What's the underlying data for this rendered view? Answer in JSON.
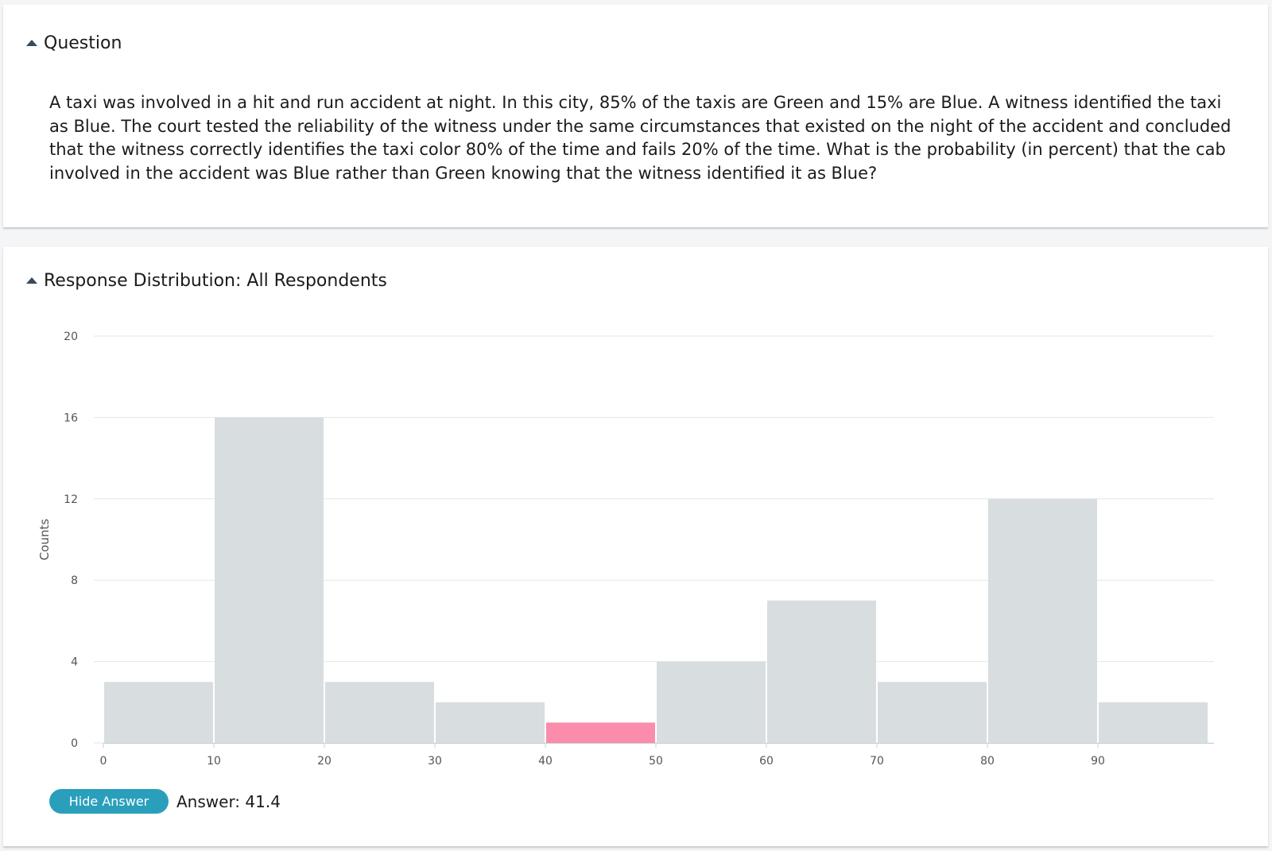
{
  "question_section": {
    "header": "Question",
    "text": "A taxi was involved in a hit and run accident at night. In this city, 85% of the taxis are Green and 15% are Blue. A witness identified the taxi as Blue. The court tested the reliability of the witness under the same circumstances that existed on the night of the accident and concluded that the witness correctly identifies the taxi color 80% of the time and fails 20% of the time. What is the probability (in percent) that the cab involved in the accident was Blue rather than Green knowing that the witness identified it as Blue?"
  },
  "distribution_section": {
    "header": "Response Distribution: All Respondents",
    "hide_answer_label": "Hide Answer",
    "answer_text": "Answer: 41.4"
  },
  "colors": {
    "bar": "#d8dde0",
    "highlight_bar": "#fb8cab",
    "button": "#2a9fbc",
    "grid": "#e4e6e8"
  },
  "chart_data": {
    "type": "bar",
    "ylabel": "Counts",
    "xlabel": "",
    "bins": [
      {
        "start": 0,
        "end": 10,
        "count": 3
      },
      {
        "start": 10,
        "end": 20,
        "count": 16
      },
      {
        "start": 20,
        "end": 30,
        "count": 3
      },
      {
        "start": 30,
        "end": 40,
        "count": 2
      },
      {
        "start": 40,
        "end": 50,
        "count": 1,
        "highlight": true
      },
      {
        "start": 50,
        "end": 60,
        "count": 4
      },
      {
        "start": 60,
        "end": 70,
        "count": 7
      },
      {
        "start": 70,
        "end": 80,
        "count": 3
      },
      {
        "start": 80,
        "end": 90,
        "count": 12
      },
      {
        "start": 90,
        "end": 100,
        "count": 2
      }
    ],
    "xticks": [
      0,
      10,
      20,
      30,
      40,
      50,
      60,
      70,
      80,
      90
    ],
    "yticks": [
      0,
      4,
      8,
      12,
      16,
      20
    ],
    "xlim": [
      0,
      100
    ],
    "ylim": [
      0,
      20
    ],
    "grid": true
  }
}
